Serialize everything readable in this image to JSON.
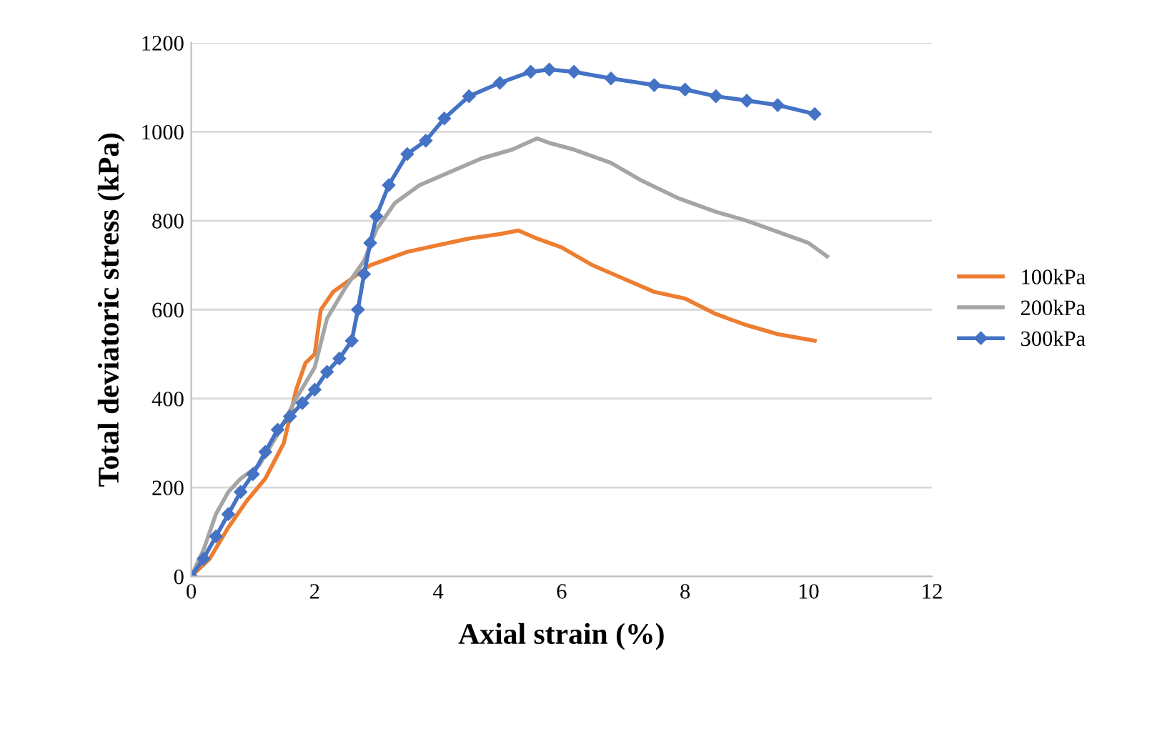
{
  "chart_data": {
    "type": "line",
    "xlabel": "Axial strain (%)",
    "ylabel": "Total deviatoric stress (kPa)",
    "xlim": [
      0,
      12
    ],
    "xticks": [
      0,
      2,
      4,
      6,
      8,
      10,
      12
    ],
    "ylim": [
      0,
      1200
    ],
    "yticks": [
      0,
      200,
      400,
      600,
      800,
      1000,
      1200
    ],
    "grid": "y",
    "legend": "right",
    "series": [
      {
        "name": "100kPa",
        "color": "#ed7d31",
        "marker": "none",
        "x": [
          0,
          0.3,
          0.6,
          0.9,
          1.2,
          1.5,
          1.7,
          1.85,
          2.0,
          2.1,
          2.3,
          2.6,
          2.9,
          3.5,
          4,
          4.5,
          5,
          5.3,
          5.6,
          6,
          6.5,
          7,
          7.5,
          8,
          8.5,
          9,
          9.5,
          10.1
        ],
        "values": [
          0,
          40,
          110,
          170,
          220,
          300,
          420,
          480,
          500,
          600,
          640,
          670,
          700,
          730,
          745,
          760,
          770,
          778,
          760,
          740,
          700,
          670,
          640,
          625,
          590,
          565,
          545,
          530
        ]
      },
      {
        "name": "200kPa",
        "color": "#a5a5a5",
        "marker": "none",
        "x": [
          0,
          0.2,
          0.4,
          0.6,
          0.8,
          1.1,
          1.4,
          1.7,
          2.0,
          2.2,
          2.5,
          2.8,
          3.0,
          3.3,
          3.7,
          4.2,
          4.7,
          5.2,
          5.6,
          5.8,
          6.2,
          6.8,
          7.3,
          7.9,
          8.5,
          9,
          9.5,
          10,
          10.3
        ],
        "values": [
          0,
          60,
          140,
          190,
          220,
          250,
          320,
          400,
          470,
          580,
          650,
          710,
          780,
          840,
          880,
          910,
          940,
          960,
          985,
          975,
          960,
          930,
          890,
          850,
          820,
          800,
          775,
          750,
          720
        ]
      },
      {
        "name": "300kPa",
        "color": "#4472c4",
        "marker": "diamond",
        "x": [
          0,
          0.2,
          0.4,
          0.6,
          0.8,
          1,
          1.2,
          1.4,
          1.6,
          1.8,
          2.0,
          2.2,
          2.4,
          2.6,
          2.7,
          2.8,
          2.9,
          3.0,
          3.2,
          3.5,
          3.8,
          4.1,
          4.5,
          5,
          5.5,
          5.8,
          6.2,
          6.8,
          7.5,
          8,
          8.5,
          9,
          9.5,
          10.1
        ],
        "values": [
          0,
          40,
          90,
          140,
          190,
          230,
          280,
          330,
          360,
          390,
          420,
          460,
          490,
          530,
          600,
          680,
          750,
          810,
          880,
          950,
          980,
          1030,
          1080,
          1110,
          1135,
          1140,
          1135,
          1120,
          1105,
          1095,
          1080,
          1070,
          1060,
          1040
        ]
      }
    ]
  }
}
